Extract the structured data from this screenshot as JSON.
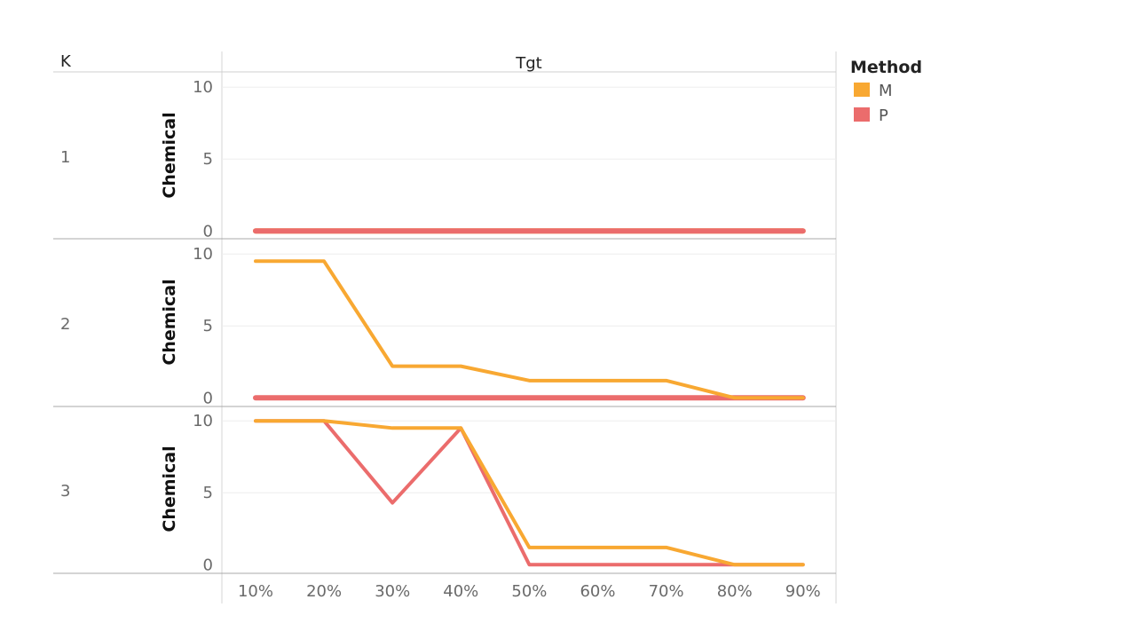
{
  "chart_data": {
    "type": "line",
    "row_header": "K",
    "column_header": "Tgt",
    "legend_title": "Method",
    "legend_placement": "top-right",
    "colors": {
      "M": "#f8a832",
      "P": "#eb6c6c"
    },
    "x": [
      "10%",
      "20%",
      "30%",
      "40%",
      "50%",
      "60%",
      "70%",
      "80%",
      "90%"
    ],
    "ylabel": "Chemical",
    "yticks": [
      0,
      5,
      10
    ],
    "ylim": [
      -0.6,
      11.0
    ],
    "grid": "horizontal",
    "panels": [
      {
        "k": "1",
        "series": [
          {
            "name": "M",
            "values": [
              0,
              0,
              0,
              0,
              0,
              0,
              0,
              0,
              0
            ]
          },
          {
            "name": "P",
            "values": [
              0,
              0,
              0,
              0,
              0,
              0,
              0,
              0,
              0
            ]
          }
        ]
      },
      {
        "k": "2",
        "series": [
          {
            "name": "P",
            "values": [
              0,
              0,
              0,
              0,
              0,
              0,
              0,
              0,
              0
            ]
          },
          {
            "name": "M",
            "values": [
              9.5,
              9.5,
              2.2,
              2.2,
              1.2,
              1.2,
              1.2,
              0,
              0
            ]
          }
        ]
      },
      {
        "k": "3",
        "series": [
          {
            "name": "P",
            "values": [
              10,
              10,
              4.3,
              9.5,
              0,
              0,
              0,
              0,
              0
            ]
          },
          {
            "name": "M",
            "values": [
              10,
              10,
              9.5,
              9.5,
              1.2,
              1.2,
              1.2,
              0,
              0
            ]
          }
        ]
      }
    ]
  }
}
